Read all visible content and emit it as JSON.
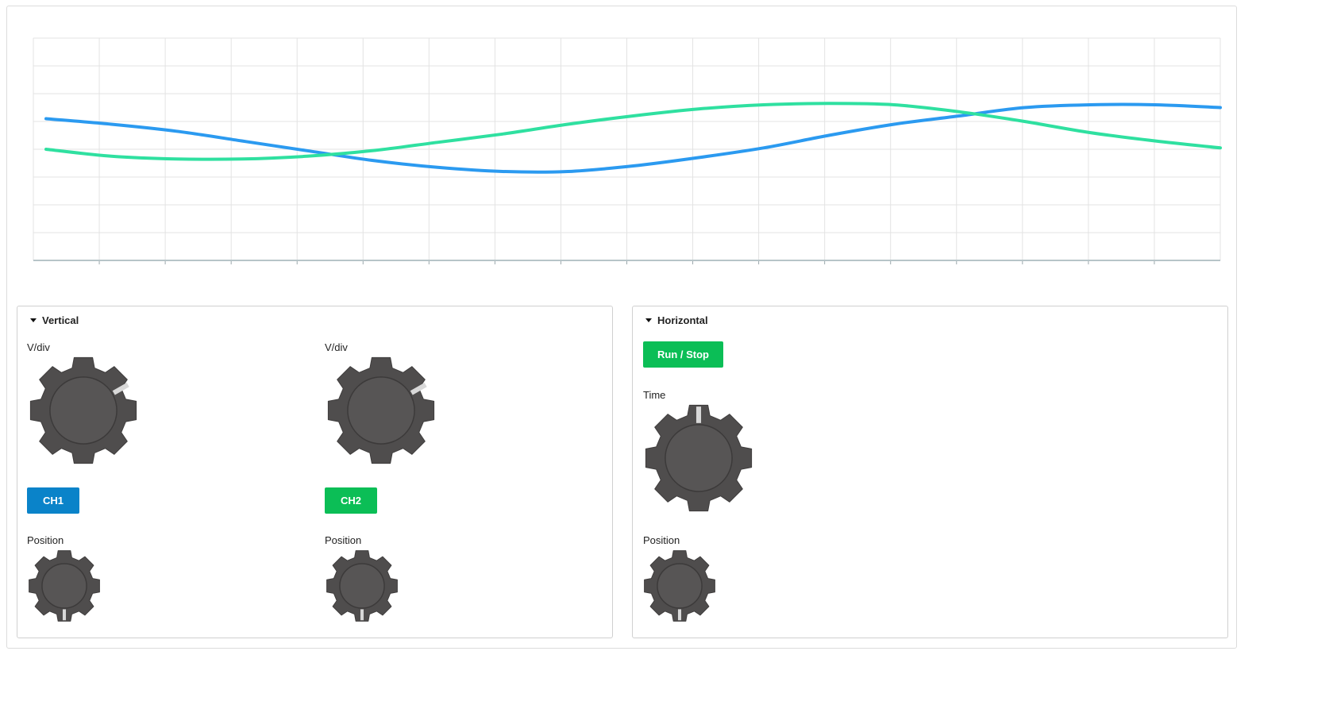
{
  "scope": {
    "grid": true,
    "colors": {
      "grid": "#e3e3e3",
      "axis": "#b7c4c8",
      "ch1": "#2b9af0",
      "ch2": "#2fe0a0"
    },
    "chart_data": {
      "type": "line",
      "title": "",
      "xlabel": "",
      "ylabel": "",
      "xlim": [
        0,
        18
      ],
      "ylim": [
        -4,
        4
      ],
      "series": [
        {
          "x": [
            0,
            1,
            2,
            3,
            4,
            5,
            6,
            7,
            8,
            9,
            10,
            11,
            12,
            13,
            14,
            15,
            16,
            17,
            18
          ],
          "y": [
            1.1,
            0.9,
            0.65,
            0.3,
            -0.05,
            -0.4,
            -0.65,
            -0.8,
            -0.8,
            -0.6,
            -0.3,
            0.05,
            0.5,
            0.9,
            1.2,
            1.5,
            1.6,
            1.6,
            1.5
          ]
        },
        {
          "x": [
            0,
            1,
            2,
            3,
            4,
            5,
            6,
            7,
            8,
            9,
            10,
            11,
            12,
            13,
            14,
            15,
            16,
            17,
            18
          ],
          "y": [
            0.0,
            -0.25,
            -0.35,
            -0.35,
            -0.25,
            -0.05,
            0.25,
            0.55,
            0.9,
            1.2,
            1.45,
            1.6,
            1.65,
            1.6,
            1.35,
            1.0,
            0.6,
            0.3,
            0.05
          ]
        }
      ]
    }
  },
  "vertical": {
    "title": "Vertical",
    "ch1": {
      "vdiv_label": "V/div",
      "button": "CH1",
      "position_label": "Position",
      "color": "#0a83c9"
    },
    "ch2": {
      "vdiv_label": "V/div",
      "button": "CH2",
      "position_label": "Position",
      "color": "#0bbe56"
    }
  },
  "horizontal": {
    "title": "Horizontal",
    "run_stop": "Run / Stop",
    "time_label": "Time",
    "position_label": "Position"
  },
  "knobs": {
    "ch1_vdiv": {
      "icon": "gear-knob-icon",
      "indicator_deg": 60
    },
    "ch2_vdiv": {
      "icon": "gear-knob-icon",
      "indicator_deg": 60
    },
    "ch1_pos": {
      "icon": "gear-knob-icon",
      "indicator_deg": 180
    },
    "ch2_pos": {
      "icon": "gear-knob-icon",
      "indicator_deg": 180
    },
    "time": {
      "icon": "gear-knob-icon",
      "indicator_deg": 0
    },
    "h_pos": {
      "icon": "gear-knob-icon",
      "indicator_deg": 180
    }
  }
}
